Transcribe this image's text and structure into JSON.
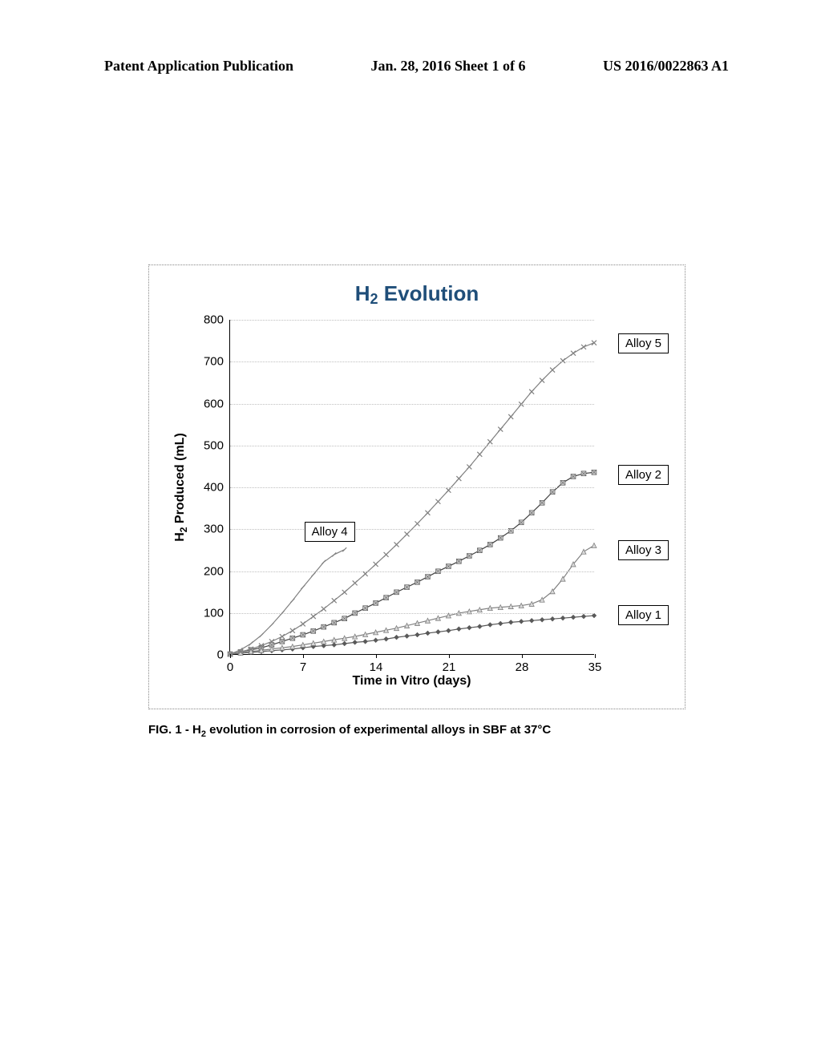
{
  "header": {
    "left": "Patent Application Publication",
    "center": "Jan. 28, 2016  Sheet 1 of 6",
    "right": "US 2016/0022863 A1"
  },
  "chart": {
    "type": "line",
    "title_prefix": "H",
    "title_sub": "2",
    "title_suffix": " Evolution",
    "title_color": "#1f4e79",
    "title_fontsize": 26,
    "background_color": "#ffffff",
    "plot_border_color": "#000000",
    "grid_color": "#bfbfbf",
    "xlabel": "Time in Vitro (days)",
    "ylabel_prefix": "H",
    "ylabel_sub": "2",
    "ylabel_suffix": " Produced (mL)",
    "label_fontsize": 16,
    "tick_fontsize": 15,
    "xlim": [
      0,
      35
    ],
    "ylim": [
      0,
      800
    ],
    "xticks": [
      0,
      7,
      14,
      21,
      28,
      35
    ],
    "yticks": [
      0,
      100,
      200,
      300,
      400,
      500,
      600,
      700,
      800
    ],
    "series": {
      "alloy1": {
        "label": "Alloy 1",
        "legend_box": {
          "right_of_plot": true,
          "y": 95
        },
        "color": "#595959",
        "marker": "diamond",
        "marker_size": 6,
        "line_width": 1.2,
        "x": [
          0,
          1,
          2,
          3,
          4,
          5,
          6,
          7,
          8,
          9,
          10,
          11,
          12,
          13,
          14,
          15,
          16,
          17,
          18,
          19,
          20,
          21,
          22,
          23,
          24,
          25,
          26,
          27,
          28,
          29,
          30,
          31,
          32,
          33,
          34,
          35
        ],
        "y": [
          0,
          2,
          4,
          6,
          8,
          10,
          12,
          15,
          18,
          20,
          22,
          25,
          28,
          30,
          33,
          36,
          40,
          43,
          46,
          50,
          53,
          56,
          60,
          63,
          66,
          70,
          73,
          76,
          78,
          80,
          82,
          84,
          86,
          88,
          90,
          92
        ]
      },
      "alloy2": {
        "label": "Alloy 2",
        "legend_box": {
          "right_of_plot": true,
          "y": 430
        },
        "color": "#404040",
        "marker": "square-hatched",
        "marker_size": 6,
        "line_width": 1.2,
        "x": [
          0,
          1,
          2,
          3,
          4,
          5,
          6,
          7,
          8,
          9,
          10,
          11,
          12,
          13,
          14,
          15,
          16,
          17,
          18,
          19,
          20,
          21,
          22,
          23,
          24,
          25,
          26,
          27,
          28,
          29,
          30,
          31,
          32,
          33,
          34,
          35
        ],
        "y": [
          0,
          5,
          10,
          15,
          22,
          30,
          38,
          46,
          55,
          65,
          75,
          85,
          98,
          110,
          122,
          135,
          148,
          160,
          172,
          185,
          198,
          210,
          222,
          235,
          248,
          262,
          278,
          295,
          315,
          338,
          362,
          388,
          410,
          425,
          432,
          435
        ]
      },
      "alloy3": {
        "label": "Alloy 3",
        "legend_box": {
          "right_of_plot": true,
          "y": 250
        },
        "color": "#7f7f7f",
        "marker": "triangle",
        "marker_size": 6,
        "line_width": 1.2,
        "x": [
          0,
          1,
          2,
          3,
          4,
          5,
          6,
          7,
          8,
          9,
          10,
          11,
          12,
          13,
          14,
          15,
          16,
          17,
          18,
          19,
          20,
          21,
          22,
          23,
          24,
          25,
          26,
          27,
          28,
          29,
          30,
          31,
          32,
          33,
          34,
          35
        ],
        "y": [
          0,
          3,
          6,
          9,
          12,
          15,
          18,
          22,
          26,
          30,
          34,
          38,
          42,
          47,
          52,
          57,
          62,
          68,
          74,
          80,
          86,
          92,
          98,
          102,
          106,
          110,
          112,
          114,
          116,
          120,
          130,
          150,
          180,
          215,
          245,
          260
        ]
      },
      "alloy4": {
        "label": "Alloy 4",
        "legend_box": {
          "right_of_plot": false,
          "x": 7.2,
          "y": 294,
          "width_days": 5
        },
        "label_x": 5,
        "label_y": 285,
        "color": "#808080",
        "marker": "line-tick",
        "marker_size": 5,
        "line_width": 1.2,
        "x": [
          0,
          1,
          2,
          3,
          4,
          5,
          6,
          7,
          8,
          9,
          10,
          11
        ],
        "y": [
          0,
          10,
          25,
          45,
          70,
          98,
          128,
          160,
          190,
          220,
          238,
          250
        ]
      },
      "alloy5": {
        "label": "Alloy 5",
        "legend_box": {
          "right_of_plot": true,
          "y": 745
        },
        "color": "#808080",
        "marker": "x",
        "marker_size": 6,
        "line_width": 1.2,
        "x": [
          0,
          1,
          2,
          3,
          4,
          5,
          6,
          7,
          8,
          9,
          10,
          11,
          12,
          13,
          14,
          15,
          16,
          17,
          18,
          19,
          20,
          21,
          22,
          23,
          24,
          25,
          26,
          27,
          28,
          29,
          30,
          31,
          32,
          33,
          34,
          35
        ],
        "y": [
          0,
          5,
          12,
          20,
          30,
          42,
          56,
          72,
          90,
          108,
          128,
          148,
          170,
          192,
          215,
          238,
          262,
          287,
          312,
          338,
          365,
          392,
          420,
          448,
          478,
          508,
          538,
          568,
          598,
          628,
          655,
          680,
          702,
          720,
          735,
          745
        ]
      }
    }
  },
  "caption_parts": {
    "prefix": "FIG. 1 - H",
    "sub": "2",
    "suffix": " evolution in corrosion of experimental alloys in SBF at 37°C"
  }
}
